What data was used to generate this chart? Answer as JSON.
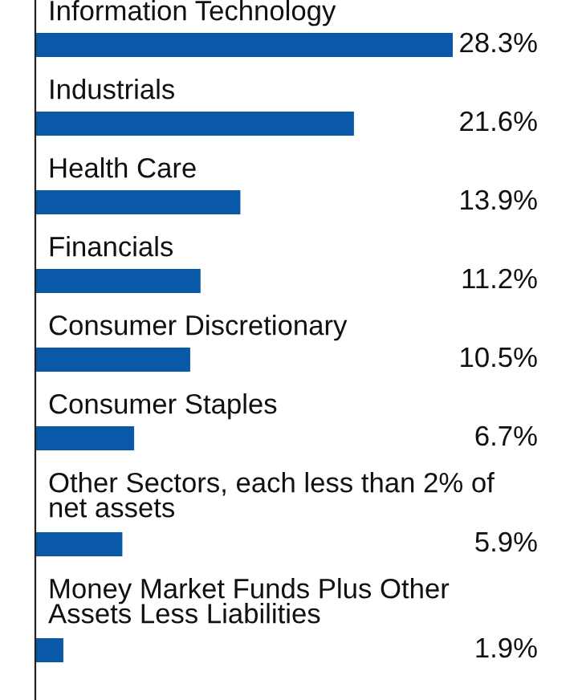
{
  "chart_data": {
    "type": "bar",
    "orientation": "horizontal",
    "data_labels": false,
    "categories": [
      "Information Technology",
      "Industrials",
      "Health Care",
      "Financials",
      "Consumer Discretionary",
      "Consumer Staples",
      "Other Sectors, each less than 2% of net assets",
      "Money Market Funds Plus Other Assets Less Liabilities"
    ],
    "values": [
      28.3,
      21.6,
      13.9,
      11.2,
      10.5,
      6.7,
      5.9,
      1.9
    ],
    "value_labels": [
      "28.3%",
      "21.6%",
      "13.9%",
      "11.2%",
      "10.5%",
      "6.7%",
      "5.9%",
      "1.9%"
    ],
    "color": "#0a58a8"
  }
}
